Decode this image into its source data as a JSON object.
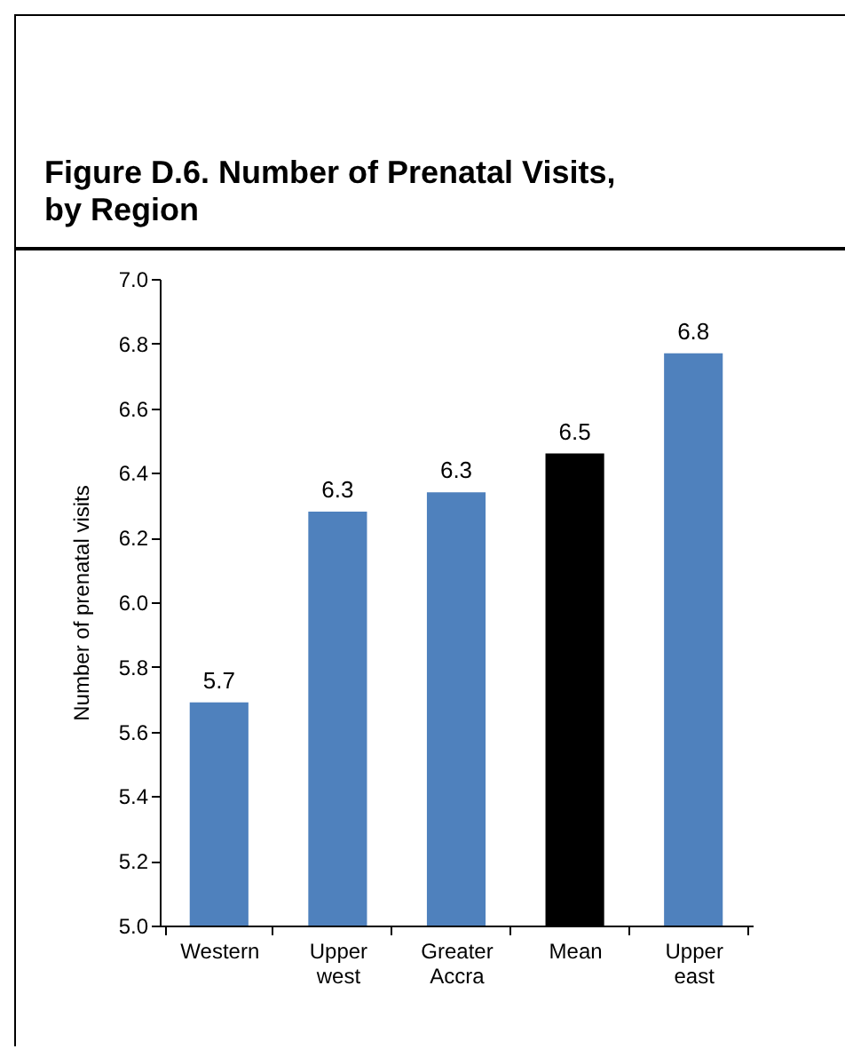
{
  "chart_data": {
    "type": "bar",
    "title": "Figure D.6. Number of Prenatal Visits, by Region",
    "ylabel": "Number of prenatal visits",
    "categories": [
      "Western",
      "Upper west",
      "Greater Accra",
      "Mean",
      "Upper east"
    ],
    "values": [
      5.69,
      6.28,
      6.34,
      6.46,
      6.77
    ],
    "value_labels": [
      "5.7",
      "6.3",
      "6.3",
      "6.5",
      "6.8"
    ],
    "colors": [
      "#4f81bd",
      "#4f81bd",
      "#4f81bd",
      "#000000",
      "#4f81bd"
    ],
    "ylim": [
      5,
      7
    ],
    "yticks": [
      {
        "value": 5,
        "label": "5.0"
      },
      {
        "value": 5.2,
        "label": "5.2"
      },
      {
        "value": 5.4,
        "label": "5.4"
      },
      {
        "value": 5.6,
        "label": "5.6"
      },
      {
        "value": 5.8,
        "label": "5.8"
      },
      {
        "value": 6,
        "label": "6.0"
      },
      {
        "value": 6.2,
        "label": "6.2"
      },
      {
        "value": 6.4,
        "label": "6.4"
      },
      {
        "value": 6.6,
        "label": "6.6"
      },
      {
        "value": 6.8,
        "label": "6.8"
      },
      {
        "value": 7,
        "label": "7.0"
      }
    ],
    "grid": false
  }
}
